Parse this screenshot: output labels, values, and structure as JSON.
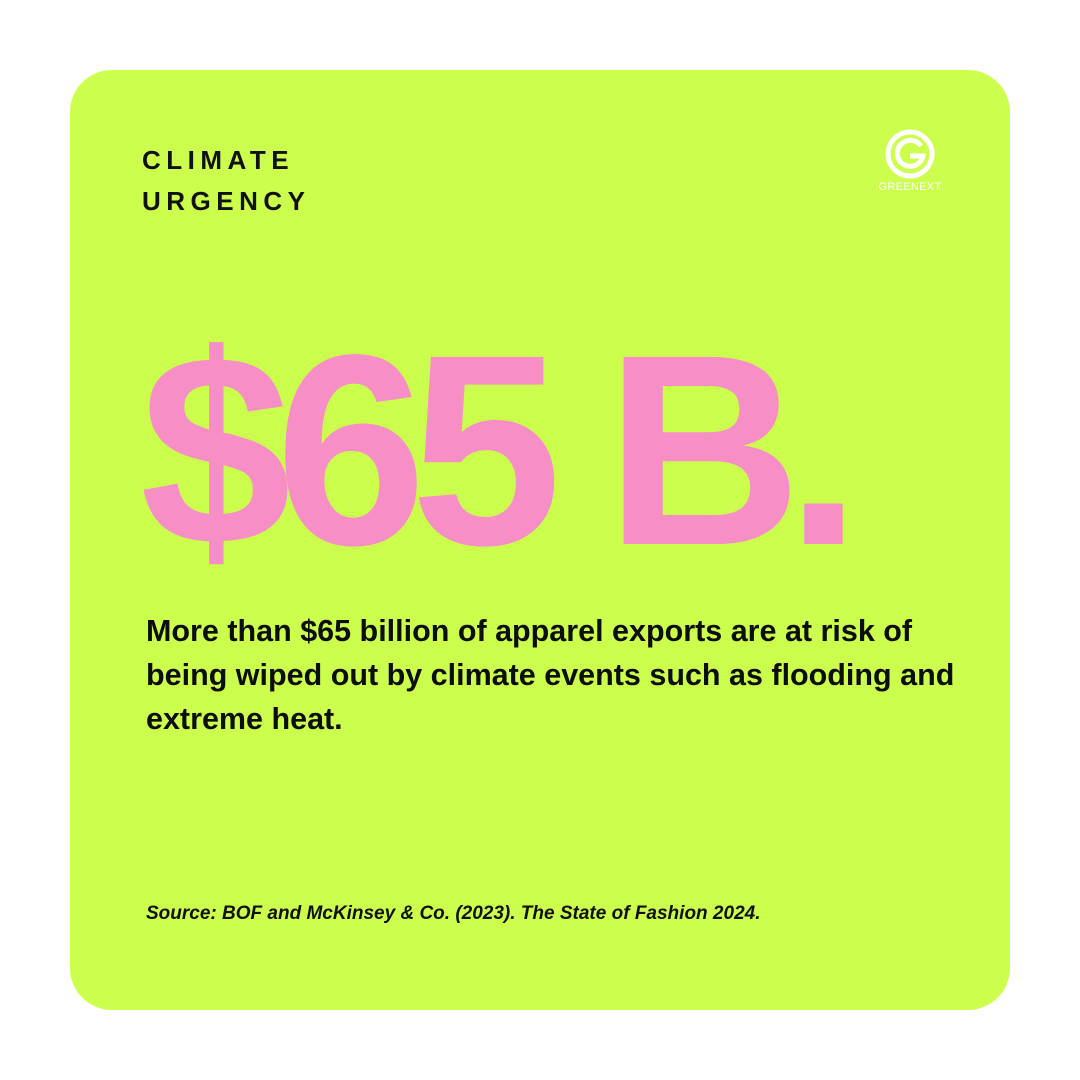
{
  "header": {
    "title_lines": [
      "CLIMATE",
      "URGENCY"
    ],
    "logo": "GREENEXT"
  },
  "headline": "$65 B.",
  "body": "More than $65 billion of apparel exports are at risk of being wiped out by climate events such as flooding and extreme heat.",
  "source": "Source: BOF and McKinsey & Co. (2023). The State of Fashion 2024."
}
